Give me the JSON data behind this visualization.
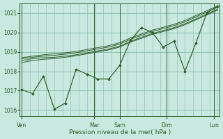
{
  "bg_color": "#c8e8e0",
  "grid_color": "#88bbaa",
  "line_color": "#2d5a27",
  "marker_color": "#2d5a27",
  "ylim": [
    1015.7,
    1021.5
  ],
  "yticks": [
    1016,
    1017,
    1018,
    1019,
    1020,
    1021
  ],
  "xlabel": "Pression niveau de la mer( hPa )",
  "xlabel_color": "#2d5a27",
  "tick_color": "#2d5a27",
  "xtick_labels": [
    "Ven",
    "Mar",
    "Sam",
    "Dim",
    "Lun"
  ],
  "xtick_positions": [
    0.0,
    0.37,
    0.5,
    0.74,
    0.98
  ],
  "vline_positions": [
    0.0,
    0.37,
    0.5,
    0.74,
    0.98
  ],
  "series_jagged": [
    1017.05,
    1016.85,
    1017.75,
    1016.05,
    1016.35,
    1018.1,
    1017.85,
    1017.6,
    1017.6,
    1018.3,
    1019.6,
    1020.25,
    1020.0,
    1019.25,
    1019.55,
    1018.0,
    1019.45,
    1021.0,
    1021.35
  ],
  "series_smooth": [
    [
      1018.55,
      1018.65,
      1018.7,
      1018.72,
      1018.78,
      1018.85,
      1018.95,
      1019.05,
      1019.15,
      1019.3,
      1019.55,
      1019.75,
      1019.95,
      1020.1,
      1020.25,
      1020.45,
      1020.7,
      1020.95,
      1021.2
    ],
    [
      1018.65,
      1018.72,
      1018.78,
      1018.82,
      1018.88,
      1018.95,
      1019.05,
      1019.15,
      1019.25,
      1019.4,
      1019.65,
      1019.85,
      1020.05,
      1020.2,
      1020.35,
      1020.55,
      1020.8,
      1021.05,
      1021.3
    ],
    [
      1018.7,
      1018.78,
      1018.85,
      1018.9,
      1018.95,
      1019.02,
      1019.12,
      1019.22,
      1019.32,
      1019.47,
      1019.72,
      1019.92,
      1020.12,
      1020.27,
      1020.42,
      1020.62,
      1020.87,
      1021.12,
      1021.37
    ],
    [
      1018.45,
      1018.55,
      1018.62,
      1018.65,
      1018.72,
      1018.8,
      1018.9,
      1019.0,
      1019.1,
      1019.25,
      1019.5,
      1019.7,
      1019.9,
      1020.05,
      1020.2,
      1020.4,
      1020.65,
      1020.9,
      1021.15
    ]
  ],
  "n_points": 19,
  "figsize": [
    3.2,
    2.0
  ],
  "dpi": 100
}
